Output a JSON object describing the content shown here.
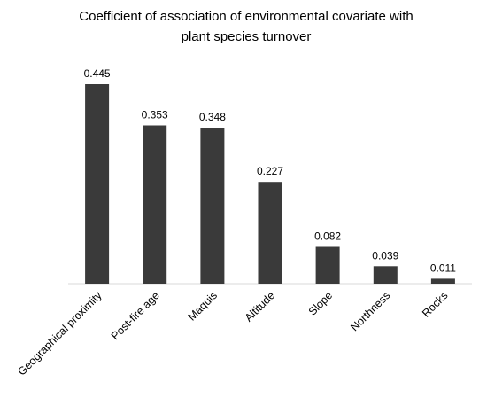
{
  "chart_data": {
    "type": "bar",
    "title_lines": [
      "Coefficient of association of environmental covariate with",
      "plant species turnover"
    ],
    "categories": [
      "Geographical proximity",
      "Post-fire age",
      "Maquis",
      "Altitude",
      "Slope",
      "Northness",
      "Rocks"
    ],
    "values": [
      0.445,
      0.353,
      0.348,
      0.227,
      0.082,
      0.039,
      0.011
    ],
    "value_labels": [
      "0.445",
      "0.353",
      "0.348",
      "0.227",
      "0.082",
      "0.039",
      "0.011"
    ],
    "xlabel": "",
    "ylabel": "",
    "ylim": [
      0,
      0.445
    ],
    "y_axis_shown": false,
    "grid": false,
    "legend": "none",
    "colors": {
      "bar": "#3a3a3a",
      "axis": "#d9d9d9",
      "text": "#000000"
    }
  }
}
